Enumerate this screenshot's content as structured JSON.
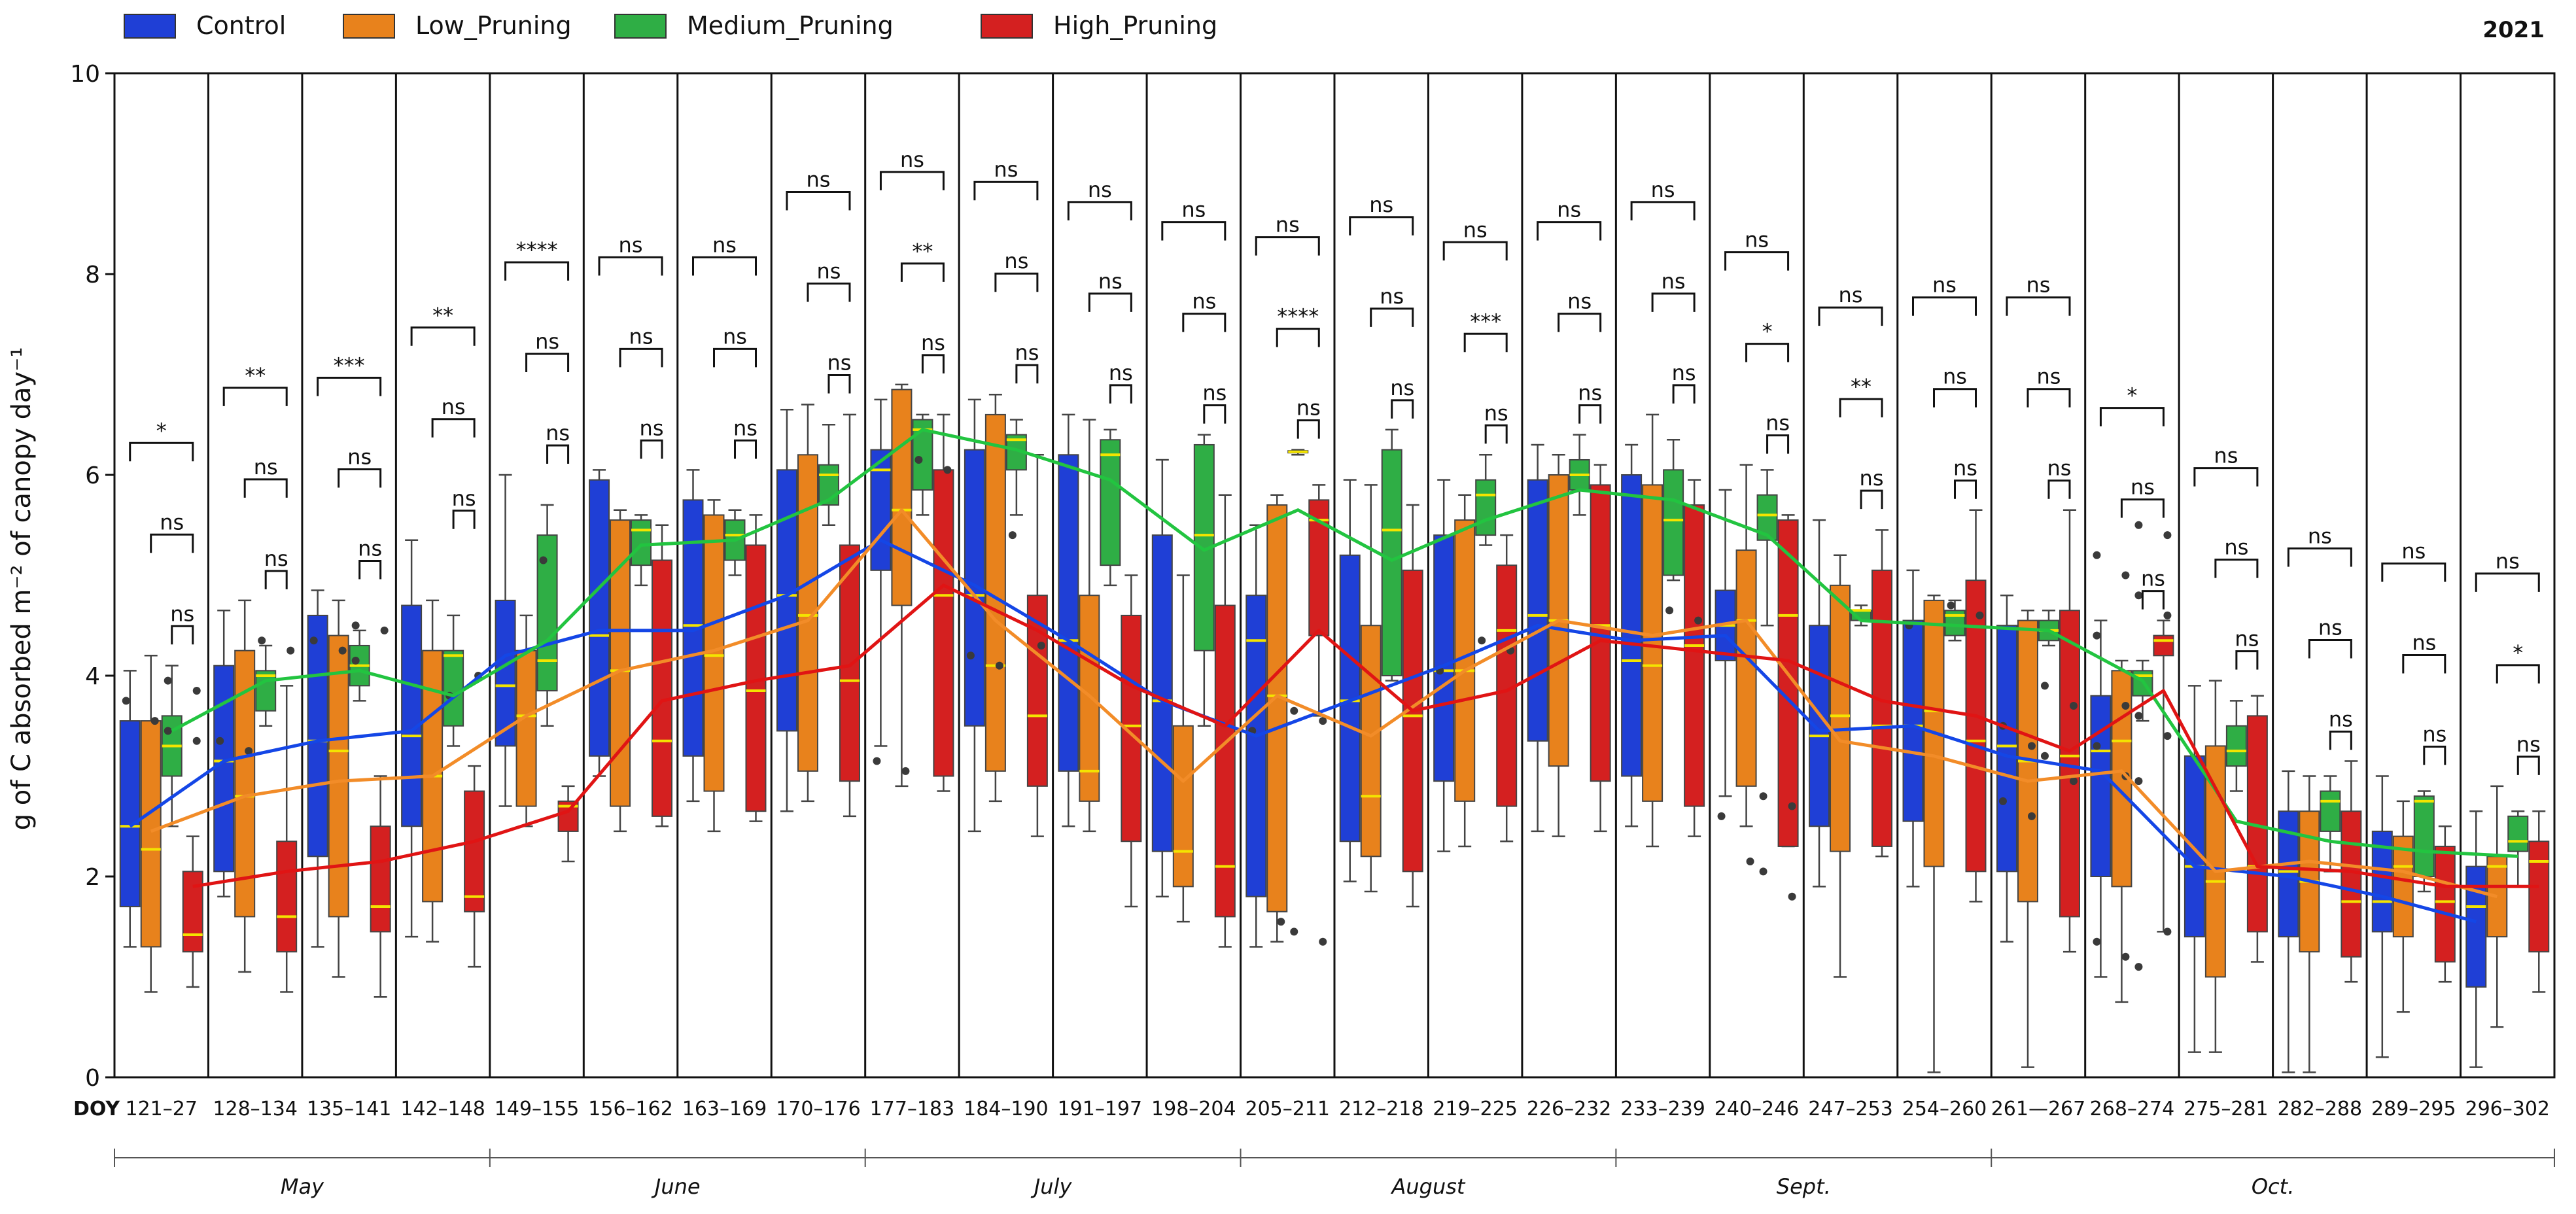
{
  "chart_data": {
    "type": "box",
    "year": "2021",
    "ylabel": "g of C absorbed m⁻² of canopy day⁻¹",
    "ylim": [
      0,
      10
    ],
    "yticks": [
      0,
      2,
      4,
      6,
      8,
      10
    ],
    "xaxis_prefix": "DOY",
    "legend_position": "top-left",
    "series": [
      {
        "name": "Control",
        "color": "#1f3fd6",
        "line_color": "#1446e6"
      },
      {
        "name": "Low_Pruning",
        "color": "#e8821c",
        "line_color": "#f28c28"
      },
      {
        "name": "Medium_Pruning",
        "color": "#2fae45",
        "line_color": "#22c440"
      },
      {
        "name": "High_Pruning",
        "color": "#d42020",
        "line_color": "#e01414"
      }
    ],
    "categories": [
      "121–27",
      "128–134",
      "135–141",
      "142–148",
      "149–155",
      "156–162",
      "163–169",
      "170–176",
      "177–183",
      "184–190",
      "191–197",
      "198–204",
      "205–211",
      "212–218",
      "219–225",
      "226–232",
      "233–239",
      "240–246",
      "247–253",
      "254–260",
      "261—267",
      "268–274",
      "275–281",
      "282–288",
      "289–295",
      "296–302"
    ],
    "months": [
      {
        "name": "May",
        "from": 0,
        "to": 3
      },
      {
        "name": "June",
        "from": 4,
        "to": 7
      },
      {
        "name": "July",
        "from": 8,
        "to": 11
      },
      {
        "name": "August",
        "from": 12,
        "to": 15
      },
      {
        "name": "Sept.",
        "from": 16,
        "to": 19
      },
      {
        "name": "Oct.",
        "from": 20,
        "to": 25
      }
    ],
    "boxes": [
      [
        [
          1.3,
          1.7,
          2.5,
          3.55,
          4.05
        ],
        [
          0.85,
          1.3,
          2.27,
          3.55,
          4.2
        ],
        [
          2.5,
          3.0,
          3.3,
          3.6,
          4.1
        ],
        [
          0.9,
          1.25,
          1.42,
          2.05,
          2.4
        ]
      ],
      [
        [
          1.8,
          2.05,
          3.15,
          4.1,
          4.65
        ],
        [
          1.05,
          1.6,
          2.8,
          4.25,
          4.75
        ],
        [
          3.5,
          3.65,
          4.0,
          4.05,
          4.3
        ],
        [
          0.85,
          1.25,
          1.6,
          2.35,
          3.9
        ]
      ],
      [
        [
          1.3,
          2.2,
          3.35,
          4.6,
          4.85
        ],
        [
          1.0,
          1.6,
          3.25,
          4.4,
          4.75
        ],
        [
          3.75,
          3.9,
          4.1,
          4.3,
          4.45
        ],
        [
          0.8,
          1.45,
          1.7,
          2.5,
          3.0
        ]
      ],
      [
        [
          1.4,
          2.5,
          3.4,
          4.7,
          5.35
        ],
        [
          1.35,
          1.75,
          3.0,
          4.25,
          4.75
        ],
        [
          3.3,
          3.5,
          4.2,
          4.25,
          4.6
        ],
        [
          1.1,
          1.65,
          1.8,
          2.85,
          3.1
        ]
      ],
      [
        [
          2.7,
          3.3,
          3.9,
          4.75,
          6.0
        ],
        [
          2.5,
          2.7,
          3.6,
          4.25,
          4.6
        ],
        [
          3.5,
          3.85,
          4.15,
          5.4,
          5.7
        ],
        [
          2.15,
          2.45,
          2.7,
          2.75,
          2.9
        ]
      ],
      [
        [
          3.0,
          3.2,
          4.4,
          5.95,
          6.05
        ],
        [
          2.45,
          2.7,
          4.05,
          5.55,
          5.65
        ],
        [
          4.9,
          5.1,
          5.45,
          5.55,
          5.6
        ],
        [
          2.5,
          2.6,
          3.35,
          5.15,
          5.5
        ]
      ],
      [
        [
          2.75,
          3.2,
          4.5,
          5.75,
          6.05
        ],
        [
          2.45,
          2.85,
          4.2,
          5.6,
          5.75
        ],
        [
          5.0,
          5.15,
          5.4,
          5.55,
          5.65
        ],
        [
          2.55,
          2.65,
          3.85,
          5.3,
          5.6
        ]
      ],
      [
        [
          2.65,
          3.45,
          4.8,
          6.05,
          6.65
        ],
        [
          2.75,
          3.05,
          4.6,
          6.2,
          6.7
        ],
        [
          5.5,
          5.7,
          6.0,
          6.1,
          6.5
        ],
        [
          2.6,
          2.95,
          3.95,
          5.3,
          6.6
        ]
      ],
      [
        [
          3.3,
          5.05,
          6.05,
          6.25,
          6.75
        ],
        [
          2.9,
          4.7,
          5.65,
          6.85,
          6.9
        ],
        [
          5.6,
          5.85,
          6.45,
          6.55,
          6.6
        ],
        [
          2.85,
          3.0,
          4.8,
          6.05,
          6.6
        ]
      ],
      [
        [
          2.45,
          3.5,
          4.8,
          6.25,
          6.75
        ],
        [
          2.75,
          3.05,
          4.1,
          6.6,
          6.8
        ],
        [
          5.6,
          6.05,
          6.35,
          6.4,
          6.55
        ],
        [
          2.4,
          2.9,
          3.6,
          4.8,
          6.2
        ]
      ],
      [
        [
          2.5,
          3.05,
          4.35,
          6.2,
          6.6
        ],
        [
          2.45,
          2.75,
          3.05,
          4.8,
          6.55
        ],
        [
          4.9,
          5.1,
          6.2,
          6.35,
          6.45
        ],
        [
          1.7,
          2.35,
          3.5,
          4.6,
          5.0
        ]
      ],
      [
        [
          1.8,
          2.25,
          3.75,
          5.4,
          6.15
        ],
        [
          1.55,
          1.9,
          2.25,
          3.5,
          5.0
        ],
        [
          3.5,
          4.25,
          5.4,
          6.3,
          6.4
        ],
        [
          1.3,
          1.6,
          2.1,
          4.7,
          5.8
        ]
      ],
      [
        [
          1.3,
          1.8,
          4.35,
          4.8,
          5.5
        ],
        [
          1.35,
          1.65,
          3.8,
          5.7,
          5.8
        ],
        [
          6.2,
          6.22,
          6.23,
          6.24,
          6.25
        ],
        [
          3.6,
          4.4,
          5.55,
          5.75,
          5.9
        ]
      ],
      [
        [
          1.95,
          2.35,
          3.75,
          5.2,
          5.95
        ],
        [
          1.85,
          2.2,
          2.8,
          4.5,
          5.9
        ],
        [
          3.95,
          4.0,
          5.45,
          6.25,
          6.45
        ],
        [
          1.7,
          2.05,
          3.6,
          5.05,
          5.7
        ]
      ],
      [
        [
          2.25,
          2.95,
          4.05,
          5.4,
          5.95
        ],
        [
          2.3,
          2.75,
          4.05,
          5.55,
          5.8
        ],
        [
          5.3,
          5.4,
          5.8,
          5.95,
          6.2
        ],
        [
          2.35,
          2.7,
          4.45,
          5.1,
          5.4
        ]
      ],
      [
        [
          2.45,
          3.35,
          4.6,
          5.95,
          6.3
        ],
        [
          2.4,
          3.1,
          4.55,
          6.0,
          6.2
        ],
        [
          5.6,
          5.85,
          6.0,
          6.15,
          6.4
        ],
        [
          2.45,
          2.95,
          4.5,
          5.9,
          6.1
        ]
      ],
      [
        [
          2.5,
          3.0,
          4.15,
          6.0,
          6.3
        ],
        [
          2.3,
          2.75,
          4.1,
          5.9,
          6.6
        ],
        [
          4.95,
          5.0,
          5.55,
          6.05,
          6.35
        ],
        [
          2.4,
          2.7,
          4.3,
          5.7,
          5.95
        ]
      ],
      [
        [
          2.8,
          4.15,
          4.5,
          4.85,
          5.85
        ],
        [
          2.5,
          2.9,
          4.55,
          5.25,
          6.1
        ],
        [
          4.5,
          5.35,
          5.6,
          5.8,
          6.05
        ],
        [
          2.3,
          2.3,
          4.6,
          5.55,
          5.6
        ]
      ],
      [
        [
          1.9,
          2.5,
          3.4,
          4.5,
          5.55
        ],
        [
          1.0,
          2.25,
          3.6,
          4.9,
          5.2
        ],
        [
          4.5,
          4.55,
          4.65,
          4.65,
          4.7
        ],
        [
          2.2,
          2.3,
          3.5,
          5.05,
          5.45
        ]
      ],
      [
        [
          1.9,
          2.55,
          3.5,
          4.55,
          5.05
        ],
        [
          0.05,
          2.1,
          3.65,
          4.75,
          4.8
        ],
        [
          4.35,
          4.4,
          4.6,
          4.65,
          4.75
        ],
        [
          1.75,
          2.05,
          3.35,
          4.95,
          5.65
        ]
      ],
      [
        [
          1.35,
          2.05,
          3.3,
          4.5,
          4.8
        ],
        [
          0.1,
          1.75,
          3.15,
          4.55,
          4.65
        ],
        [
          4.3,
          4.35,
          4.45,
          4.55,
          4.65
        ],
        [
          1.25,
          1.6,
          3.2,
          4.65,
          5.65
        ]
      ],
      [
        [
          1.0,
          2.0,
          3.25,
          3.8,
          4.55
        ],
        [
          0.75,
          1.9,
          3.35,
          4.05,
          4.15
        ],
        [
          3.55,
          3.8,
          4.0,
          4.05,
          4.15
        ],
        [
          1.45,
          4.2,
          4.35,
          4.4,
          4.55
        ]
      ],
      [
        [
          0.25,
          1.4,
          2.1,
          3.2,
          3.9
        ],
        [
          0.25,
          1.0,
          1.95,
          3.3,
          3.95
        ],
        [
          2.85,
          3.1,
          3.25,
          3.5,
          3.75
        ],
        [
          1.15,
          1.45,
          2.1,
          3.6,
          3.8
        ]
      ],
      [
        [
          0.05,
          1.4,
          2.05,
          2.65,
          3.05
        ],
        [
          0.05,
          1.25,
          1.95,
          2.65,
          3.0
        ],
        [
          2.05,
          2.45,
          2.75,
          2.85,
          3.0
        ],
        [
          0.95,
          1.2,
          1.75,
          2.65,
          3.15
        ]
      ],
      [
        [
          0.2,
          1.45,
          1.75,
          2.45,
          3.0
        ],
        [
          0.65,
          1.4,
          2.1,
          2.4,
          2.75
        ],
        [
          1.85,
          2.0,
          2.75,
          2.8,
          2.85
        ],
        [
          0.95,
          1.15,
          1.75,
          2.3,
          2.5
        ]
      ],
      [
        [
          0.1,
          0.9,
          1.7,
          2.1,
          2.65
        ],
        [
          0.5,
          1.4,
          2.1,
          2.2,
          2.9
        ],
        [
          1.9,
          2.25,
          2.35,
          2.6,
          2.65
        ],
        [
          0.85,
          1.25,
          2.15,
          2.35,
          2.65
        ]
      ]
    ],
    "mean_lines": [
      [
        2.5,
        3.15,
        3.35,
        3.45,
        4.2,
        4.45,
        4.45,
        4.8,
        5.35,
        4.9,
        4.35,
        3.75,
        3.4,
        3.75,
        4.1,
        4.5,
        4.35,
        4.4,
        3.45,
        3.5,
        3.2,
        3.05,
        2.1,
        2.0,
        1.8,
        1.55
      ],
      [
        2.45,
        2.8,
        2.95,
        3.0,
        3.6,
        4.05,
        4.25,
        4.55,
        5.65,
        4.55,
        3.8,
        2.95,
        3.8,
        3.4,
        4.05,
        4.55,
        4.4,
        4.55,
        3.35,
        3.2,
        2.95,
        3.05,
        2.05,
        2.15,
        2.05,
        1.8
      ],
      [
        3.45,
        3.95,
        4.05,
        3.8,
        4.35,
        5.3,
        5.35,
        5.75,
        6.45,
        6.25,
        5.95,
        5.25,
        5.65,
        5.15,
        5.55,
        5.85,
        5.75,
        5.4,
        4.55,
        4.5,
        4.45,
        3.95,
        2.55,
        2.35,
        2.25,
        2.2
      ],
      [
        1.9,
        2.05,
        2.15,
        2.35,
        2.65,
        3.75,
        3.95,
        4.1,
        4.9,
        4.45,
        3.9,
        3.5,
        4.45,
        3.65,
        3.85,
        4.35,
        4.25,
        4.15,
        3.75,
        3.6,
        3.25,
        3.85,
        2.1,
        2.05,
        1.9,
        1.9
      ]
    ],
    "significance": [
      [
        "ns",
        "ns",
        "*"
      ],
      [
        "ns",
        "ns",
        "**"
      ],
      [
        "ns",
        "ns",
        "***"
      ],
      [
        "ns",
        "ns",
        "**"
      ],
      [
        "ns",
        "ns",
        "****"
      ],
      [
        "ns",
        "ns",
        "ns"
      ],
      [
        "ns",
        "ns",
        "ns"
      ],
      [
        "ns",
        "ns",
        "ns"
      ],
      [
        "ns",
        "**",
        "ns"
      ],
      [
        "ns",
        "ns",
        "ns"
      ],
      [
        "ns",
        "ns",
        "ns"
      ],
      [
        "ns",
        "ns",
        "ns"
      ],
      [
        "ns",
        "****",
        "ns"
      ],
      [
        "ns",
        "ns",
        "ns"
      ],
      [
        "ns",
        "***",
        "ns"
      ],
      [
        "ns",
        "ns",
        "ns"
      ],
      [
        "ns",
        "ns",
        "ns"
      ],
      [
        "ns",
        "*",
        "ns"
      ],
      [
        "ns",
        "**",
        "ns"
      ],
      [
        "ns",
        "ns",
        "ns"
      ],
      [
        "ns",
        "ns",
        "ns"
      ],
      [
        "ns",
        "ns",
        "*"
      ],
      [
        "ns",
        "ns",
        "ns"
      ],
      [
        "ns",
        "ns",
        "ns"
      ],
      [
        "ns",
        "ns",
        "ns"
      ],
      [
        "ns",
        "*",
        "ns"
      ]
    ],
    "outliers": [
      [
        [
          3.95,
          3.85,
          3.75,
          3.55,
          3.45,
          3.35
        ]
      ],
      [
        [
          4.35,
          4.25,
          3.35,
          3.25
        ]
      ],
      [
        [
          4.5,
          4.45,
          4.35,
          4.25,
          4.15
        ]
      ],
      [
        [
          3.8,
          4.0
        ]
      ],
      [
        [
          5.15
        ]
      ],
      [],
      [],
      [],
      [
        [
          6.15,
          6.05,
          3.15,
          3.05
        ]
      ],
      [
        [
          5.4,
          4.3,
          4.2,
          4.1
        ]
      ],
      [],
      [],
      [
        [
          3.65,
          3.55,
          3.45,
          1.55,
          1.45,
          1.35
        ]
      ],
      [],
      [
        [
          4.35,
          4.25,
          4.05
        ]
      ],
      [],
      [
        [
          4.65,
          4.55
        ]
      ],
      [
        [
          2.8,
          2.7,
          2.6,
          2.15,
          2.05,
          1.8
        ]
      ],
      [],
      [
        [
          4.7,
          4.6,
          4.5
        ]
      ],
      [
        [
          3.9,
          3.7,
          3.5,
          3.3,
          3.2,
          2.95,
          2.75,
          2.6
        ]
      ],
      [
        [
          5.5,
          5.4,
          5.2,
          5.0,
          4.8,
          4.6,
          4.4,
          3.7,
          3.6,
          3.4,
          3.3,
          3.0,
          2.95,
          1.45,
          1.35,
          1.2,
          1.1
        ]
      ],
      [],
      [],
      [],
      []
    ]
  }
}
